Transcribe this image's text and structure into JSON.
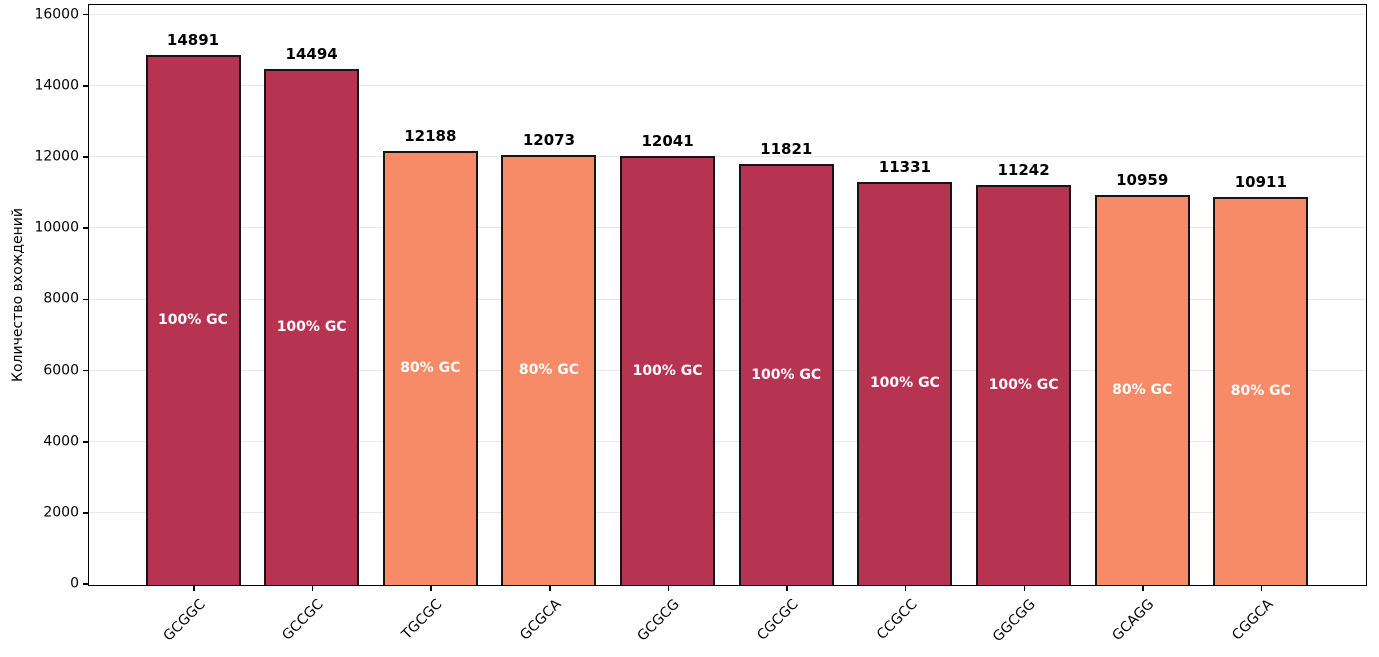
{
  "chart_data": {
    "type": "bar",
    "title": "",
    "xlabel": "",
    "ylabel": "Количество вхождений",
    "categories": [
      "GCGGC",
      "GCCGC",
      "TGCGC",
      "GCGCA",
      "GCGCG",
      "CGCGC",
      "CCGCC",
      "GGCGG",
      "GCAGG",
      "CGGCA"
    ],
    "values": [
      14891,
      14494,
      12188,
      12073,
      12041,
      11821,
      11331,
      11242,
      10959,
      10911
    ],
    "bar_labels": [
      "100% GC",
      "100% GC",
      "80% GC",
      "80% GC",
      "100% GC",
      "100% GC",
      "100% GC",
      "100% GC",
      "80% GC",
      "80% GC"
    ],
    "group_colors": {
      "100% GC": "#b63452",
      "80% GC": "#f78b68"
    },
    "bar_edge_color": "#151515",
    "value_label_color": "#000000",
    "inside_label_color": "#ffffff",
    "ylim": [
      0,
      16000
    ],
    "yticks": [
      0,
      2000,
      4000,
      6000,
      8000,
      10000,
      12000,
      14000,
      16000
    ],
    "grid": "horizontal",
    "legend": "none"
  }
}
